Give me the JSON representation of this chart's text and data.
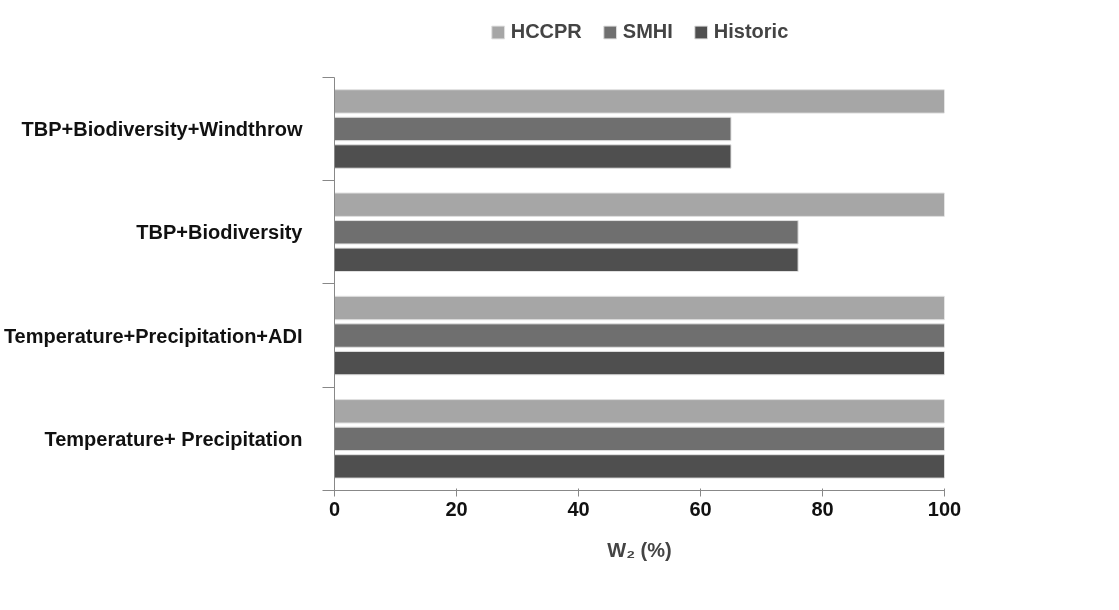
{
  "chart_data": {
    "type": "bar",
    "orientation": "horizontal",
    "categories": [
      "TBP+Biodiversity+Windthrow",
      "TBP+Biodiversity",
      "Temperature+Precipitation+ADI",
      "Temperature+ Precipitation"
    ],
    "series": [
      {
        "name": "HCCPR",
        "color": "#a6a6a6",
        "values": [
          100,
          100,
          100,
          100
        ]
      },
      {
        "name": "SMHI",
        "color": "#6f6f6f",
        "values": [
          65,
          76,
          100,
          100
        ]
      },
      {
        "name": "Historic",
        "color": "#4f4f4f",
        "values": [
          65,
          76,
          100,
          100
        ]
      }
    ],
    "xlabel": "W₂ (%)",
    "xlim": [
      0,
      100
    ],
    "xticks": [
      0,
      20,
      40,
      60,
      80,
      100
    ],
    "grid": false,
    "legend": "top"
  }
}
